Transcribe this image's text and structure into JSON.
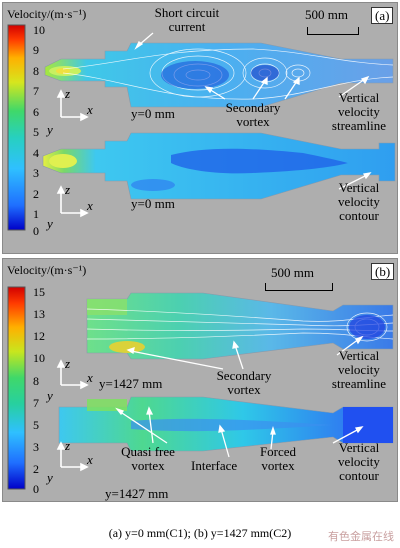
{
  "panel_a": {
    "colorbar_title": "Velocity/(m·s⁻¹)",
    "ticks": [
      "10",
      "9",
      "8",
      "7",
      "6",
      "5",
      "4",
      "3",
      "2",
      "1",
      "0"
    ],
    "panel_label": "(a)",
    "scale_label": "500 mm",
    "annotations": {
      "short_circuit_line1": "Short circuit",
      "short_circuit_line2": "current",
      "secondary_line1": "Secondary",
      "secondary_line2": "vortex",
      "stream_line1": "Vertical",
      "stream_line2": "velocity",
      "stream_line3": "streamline",
      "contour_line1": "Vertical",
      "contour_line2": "velocity",
      "contour_line3": "contour"
    },
    "plane_top": "y=0 mm",
    "plane_bottom": "y=0 mm",
    "axes": {
      "z": "z",
      "x": "x",
      "y": "y"
    }
  },
  "panel_b": {
    "colorbar_title": "Velocity/(m·s⁻¹)",
    "ticks": [
      "15",
      "13",
      "12",
      "10",
      "8",
      "7",
      "5",
      "3",
      "2",
      "0"
    ],
    "panel_label": "(b)",
    "scale_label": "500 mm",
    "annotations": {
      "secondary_line1": "Secondary",
      "secondary_line2": "vortex",
      "stream_line1": "Vertical",
      "stream_line2": "velocity",
      "stream_line3": "streamline",
      "quasi_line1": "Quasi free",
      "quasi_line2": "vortex",
      "interface": "Interface",
      "forced_line1": "Forced",
      "forced_line2": "vortex",
      "contour_line1": "Vertical",
      "contour_line2": "velocity",
      "contour_line3": "contour"
    },
    "plane_top": "y=1427 mm",
    "plane_bottom": "y=1427 mm",
    "axes": {
      "z": "z",
      "x": "x",
      "y": "y"
    }
  },
  "caption": "(a) y=0 mm(C1); (b) y=1427 mm(C2)",
  "watermark": "有色金属在线",
  "colors": {
    "panel_background": "#aeaeae",
    "colormap": [
      "#0000c8",
      "#1f6fff",
      "#2fc0ff",
      "#27d0c0",
      "#3fd86a",
      "#d6e61e",
      "#ffb000",
      "#ff3a00",
      "#d20000"
    ]
  }
}
